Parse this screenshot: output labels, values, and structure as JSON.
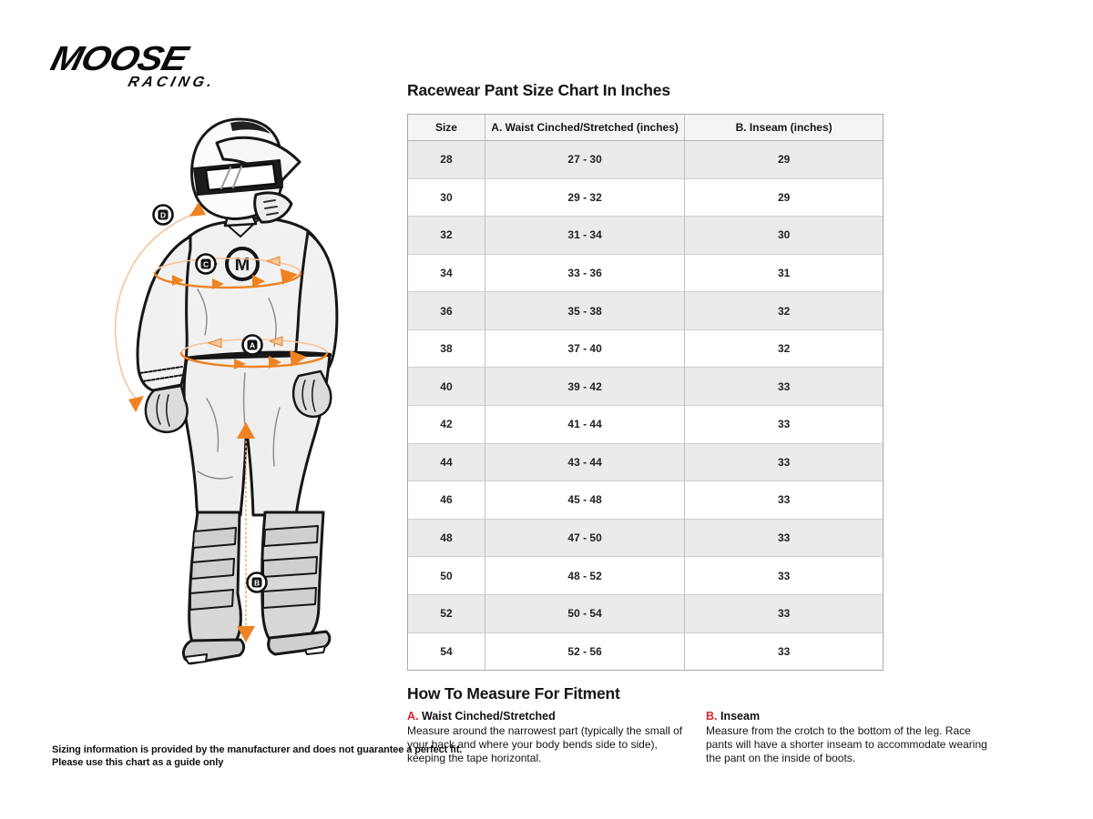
{
  "brand": {
    "name_top": "MOOSE",
    "name_bottom": "RACING."
  },
  "chart_data": {
    "type": "table",
    "title": "Racewear Pant Size Chart In Inches",
    "columns": [
      "Size",
      "A. Waist Cinched/Stretched (inches)",
      "B. Inseam (inches)"
    ],
    "rows": [
      [
        "28",
        "27 - 30",
        "29"
      ],
      [
        "30",
        "29 - 32",
        "29"
      ],
      [
        "32",
        "31 - 34",
        "30"
      ],
      [
        "34",
        "33 - 36",
        "31"
      ],
      [
        "36",
        "35 - 38",
        "32"
      ],
      [
        "38",
        "37 - 40",
        "32"
      ],
      [
        "40",
        "39 - 42",
        "33"
      ],
      [
        "42",
        "41 - 44",
        "33"
      ],
      [
        "44",
        "43 - 44",
        "33"
      ],
      [
        "46",
        "45 - 48",
        "33"
      ],
      [
        "48",
        "47 - 50",
        "33"
      ],
      [
        "50",
        "48 - 52",
        "33"
      ],
      [
        "52",
        "50 - 54",
        "33"
      ],
      [
        "54",
        "52 - 56",
        "33"
      ]
    ],
    "layout": {
      "striped": true,
      "stripe_color": "#EBEBEB",
      "header_bg": "#F4F4F4"
    }
  },
  "how_to_measure": {
    "title": "How To Measure For Fitment",
    "items": [
      {
        "letter": "A.",
        "label": "Waist Cinched/Stretched",
        "description": "Measure around the narrowest part (typically the small of your back and where your body bends side to side), keeping the tape horizontal."
      },
      {
        "letter": "B.",
        "label": "Inseam",
        "description": "Measure from the crotch to the bottom of the leg. Race pants will have a shorter inseam to accommodate wearing the pant on the inside of boots."
      }
    ]
  },
  "disclaimer": {
    "line1": "Sizing information is provided by the manufacturer and does not guarantee a perfect fit.",
    "line2": "Please use this chart as a guide only"
  },
  "diagram": {
    "markers": [
      {
        "letter": "D"
      },
      {
        "letter": "C"
      },
      {
        "letter": "A"
      },
      {
        "letter": "B"
      }
    ],
    "jersey_logo_letter": "M"
  },
  "colors": {
    "accent_orange": "#EF8221",
    "accent_orange_light": "#F6C49A",
    "accent_red": "#D9232E",
    "ink": "#161616"
  }
}
